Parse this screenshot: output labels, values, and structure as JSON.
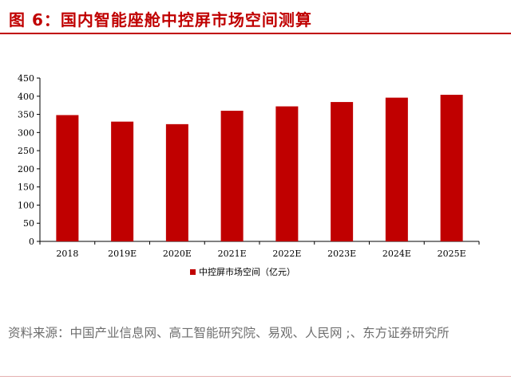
{
  "title": "图 6：国内智能座舱中控屏市场空间测算",
  "source": "资料来源：中国产业信息网、高工智能研究院、易观、人民网 ;、东方证券研究所",
  "colors": {
    "accent": "#c00000",
    "bar": "#c00000"
  },
  "chart_data": {
    "type": "bar",
    "categories": [
      "2018",
      "2019E",
      "2020E",
      "2021E",
      "2022E",
      "2023E",
      "2024E",
      "2025E"
    ],
    "series": [
      {
        "name": "中控屏市场空间（亿元）",
        "values": [
          348,
          330,
          323,
          360,
          372,
          384,
          396,
          404
        ]
      }
    ],
    "ylim": [
      0,
      450
    ],
    "yticks": [
      0,
      50,
      100,
      150,
      200,
      250,
      300,
      350,
      400,
      450
    ],
    "grid": false,
    "legend_position": "bottom-center"
  }
}
